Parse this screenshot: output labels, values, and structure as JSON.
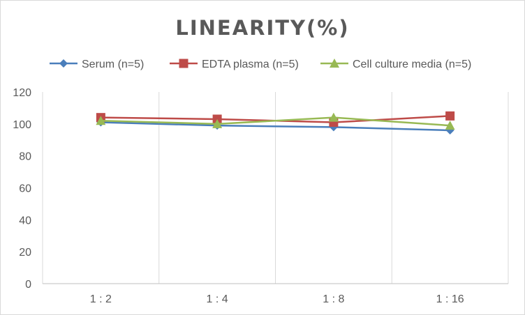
{
  "chart_data": {
    "type": "line",
    "title": "LINEARITY(%)",
    "xlabel": "",
    "ylabel": "",
    "categories": [
      "1:2",
      "1:4",
      "1:8",
      "1:16"
    ],
    "ylim": [
      0,
      120
    ],
    "yticks": [
      0,
      20,
      40,
      60,
      80,
      100,
      120
    ],
    "grid": "vertical category gridlines",
    "legend_position": "top",
    "series": [
      {
        "name": "Serum (n=5)",
        "values": [
          101,
          99,
          98,
          96
        ],
        "color": "#4a7ebb",
        "marker": "diamond"
      },
      {
        "name": "EDTA plasma (n=5)",
        "values": [
          104,
          103,
          101,
          105
        ],
        "color": "#be4b48",
        "marker": "square"
      },
      {
        "name": "Cell culture media (n=5)",
        "values": [
          102,
          100,
          104,
          99
        ],
        "color": "#98b954",
        "marker": "triangle"
      }
    ]
  }
}
